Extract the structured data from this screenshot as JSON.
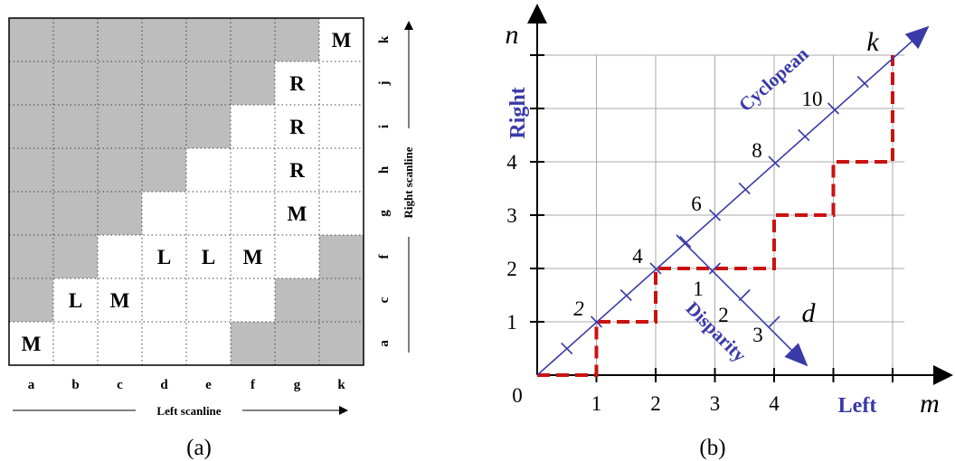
{
  "panel_a": {
    "caption": "(a)",
    "columns": [
      "a",
      "b",
      "c",
      "d",
      "e",
      "f",
      "g",
      "k"
    ],
    "rows_bottom_to_top": [
      "a",
      "c",
      "f",
      "g",
      "h",
      "i",
      "j",
      "k"
    ],
    "x_axis_label": "Left scanline",
    "y_axis_label": "Right scanline",
    "shaded_cells": [
      [
        0,
        7
      ],
      [
        1,
        7
      ],
      [
        2,
        7
      ],
      [
        3,
        7
      ],
      [
        4,
        7
      ],
      [
        5,
        7
      ],
      [
        6,
        7
      ],
      [
        0,
        6
      ],
      [
        1,
        6
      ],
      [
        2,
        6
      ],
      [
        3,
        6
      ],
      [
        4,
        6
      ],
      [
        5,
        6
      ],
      [
        0,
        5
      ],
      [
        1,
        5
      ],
      [
        2,
        5
      ],
      [
        3,
        5
      ],
      [
        4,
        5
      ],
      [
        0,
        4
      ],
      [
        1,
        4
      ],
      [
        2,
        4
      ],
      [
        3,
        4
      ],
      [
        0,
        3
      ],
      [
        1,
        3
      ],
      [
        2,
        3
      ],
      [
        0,
        2
      ],
      [
        1,
        2
      ],
      [
        7,
        2
      ],
      [
        0,
        1
      ],
      [
        6,
        1
      ],
      [
        7,
        1
      ],
      [
        5,
        0
      ],
      [
        6,
        0
      ],
      [
        7,
        0
      ]
    ],
    "cell_labels": [
      {
        "col": 7,
        "row": 7,
        "text": "M"
      },
      {
        "col": 6,
        "row": 6,
        "text": "R"
      },
      {
        "col": 6,
        "row": 5,
        "text": "R"
      },
      {
        "col": 6,
        "row": 4,
        "text": "R"
      },
      {
        "col": 6,
        "row": 3,
        "text": "M"
      },
      {
        "col": 3,
        "row": 2,
        "text": "L"
      },
      {
        "col": 4,
        "row": 2,
        "text": "L"
      },
      {
        "col": 5,
        "row": 2,
        "text": "M"
      },
      {
        "col": 1,
        "row": 1,
        "text": "L"
      },
      {
        "col": 2,
        "row": 1,
        "text": "M"
      },
      {
        "col": 0,
        "row": 0,
        "text": "M"
      }
    ]
  },
  "panel_b": {
    "caption": "(b)",
    "x_axis_letter": "m",
    "y_axis_letter": "n",
    "x_axis_word": "Left",
    "y_axis_word": "Right",
    "origin_label": "0",
    "x_ticks": [
      "1",
      "2",
      "3",
      "4"
    ],
    "y_ticks": [
      "1",
      "2",
      "3",
      "4"
    ],
    "cyclopean_label": "Cyclopean",
    "cyclopean_letter": "k",
    "cyclopean_ticks": [
      "2",
      "4",
      "6",
      "8",
      "10"
    ],
    "disparity_label": "Disparity",
    "disparity_letter": "d",
    "disparity_ticks": [
      "1",
      "2",
      "3"
    ],
    "colors": {
      "blue": "#3a3aa8",
      "red": "#cc1111",
      "grid": "#aaaaaa"
    }
  }
}
